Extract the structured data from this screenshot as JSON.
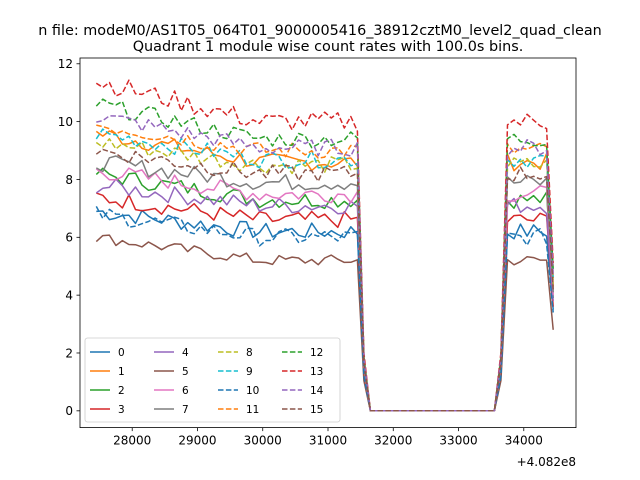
{
  "suptitle": "n file: modeM0/AS1T05_064T01_9000005416_38912cztM0_level2_quad_clean",
  "chart_data": {
    "type": "line",
    "title": "Quadrant 1 module wise count rates with 100.0s bins.",
    "xlabel": "",
    "ylabel": "",
    "x_offset_text": "+4.082e8",
    "xlim": [
      27200,
      34800
    ],
    "ylim": [
      -0.58,
      12.2
    ],
    "x_ticks": [
      28000,
      29000,
      30000,
      31000,
      32000,
      33000,
      34000
    ],
    "y_ticks": [
      0,
      2,
      4,
      6,
      8,
      10,
      12
    ],
    "x_tick_labels": [
      "28000",
      "29000",
      "30000",
      "31000",
      "32000",
      "33000",
      "34000"
    ],
    "y_tick_labels": [
      "0",
      "2",
      "4",
      "6",
      "8",
      "10",
      "12"
    ],
    "grid": false,
    "legend_position": "lower-left",
    "legend_columns": 4,
    "segments": [
      {
        "x_start": 27450,
        "x_end": 31450
      },
      {
        "x_start": 31450,
        "x_end": 31650
      },
      {
        "x_start": 31650,
        "x_end": 33550
      },
      {
        "x_start": 33550,
        "x_end": 33750
      },
      {
        "x_start": 33750,
        "x_end": 34350
      },
      {
        "x_start": 34350,
        "x_end": 34450
      }
    ],
    "series": [
      {
        "name": "0",
        "color": "#1f77b4",
        "dash": "solid",
        "level_a": 6.9,
        "level_b": 6.2,
        "end": 3.5,
        "noise": 0.3
      },
      {
        "name": "1",
        "color": "#ff7f0e",
        "dash": "solid",
        "level_a": 9.6,
        "level_b": 8.6,
        "end": 4.3,
        "noise": 0.3
      },
      {
        "name": "2",
        "color": "#2ca02c",
        "dash": "solid",
        "level_a": 8.2,
        "level_b": 7.3,
        "end": 3.9,
        "noise": 0.3
      },
      {
        "name": "3",
        "color": "#d62728",
        "dash": "solid",
        "level_a": 7.4,
        "level_b": 6.6,
        "end": 3.6,
        "noise": 0.3
      },
      {
        "name": "4",
        "color": "#9467bd",
        "dash": "solid",
        "level_a": 7.8,
        "level_b": 7.1,
        "end": 3.8,
        "noise": 0.3
      },
      {
        "name": "5",
        "color": "#8c564b",
        "dash": "solid",
        "level_a": 6.0,
        "level_b": 5.2,
        "end": 2.8,
        "noise": 0.2
      },
      {
        "name": "6",
        "color": "#e377c2",
        "dash": "solid",
        "level_a": 8.3,
        "level_b": 7.5,
        "end": 4.0,
        "noise": 0.3
      },
      {
        "name": "7",
        "color": "#7f7f7f",
        "dash": "solid",
        "level_a": 8.6,
        "level_b": 7.9,
        "end": 4.1,
        "noise": 0.3
      },
      {
        "name": "8",
        "color": "#bcbd22",
        "dash": "dashed",
        "level_a": 9.3,
        "level_b": 8.5,
        "end": 4.4,
        "noise": 0.3
      },
      {
        "name": "9",
        "color": "#17becf",
        "dash": "dashed",
        "level_a": 9.6,
        "level_b": 8.7,
        "end": 4.6,
        "noise": 0.3
      },
      {
        "name": "10",
        "color": "#1f77b4",
        "dash": "dashed",
        "level_a": 6.8,
        "level_b": 6.0,
        "end": 3.4,
        "noise": 0.3
      },
      {
        "name": "11",
        "color": "#ff7f0e",
        "dash": "dashed",
        "level_a": 9.9,
        "level_b": 9.0,
        "end": 4.6,
        "noise": 0.3
      },
      {
        "name": "12",
        "color": "#2ca02c",
        "dash": "dashed",
        "level_a": 10.6,
        "level_b": 9.4,
        "end": 4.9,
        "noise": 0.3
      },
      {
        "name": "13",
        "color": "#d62728",
        "dash": "dashed",
        "level_a": 11.4,
        "level_b": 10.0,
        "end": 5.1,
        "noise": 0.35
      },
      {
        "name": "14",
        "color": "#9467bd",
        "dash": "dashed",
        "level_a": 10.2,
        "level_b": 9.1,
        "end": 4.7,
        "noise": 0.3
      },
      {
        "name": "15",
        "color": "#8c564b",
        "dash": "dashed",
        "level_a": 9.0,
        "level_b": 8.2,
        "end": 4.2,
        "noise": 0.3
      }
    ]
  }
}
